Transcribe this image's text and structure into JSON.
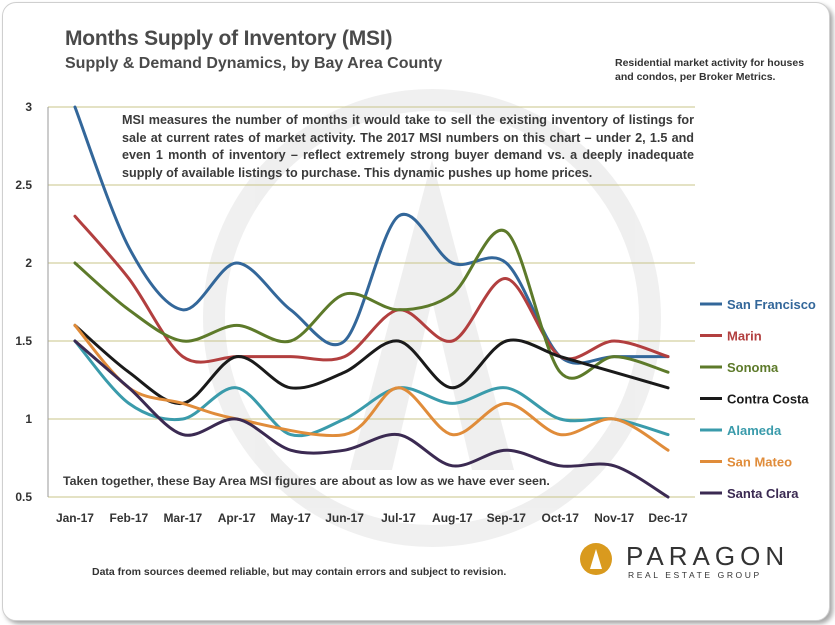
{
  "header": {
    "title": "Months Supply of Inventory (MSI)",
    "subtitle": "Supply & Demand Dynamics, by Bay Area County",
    "top_note": "Residential market activity for houses and condos, per Broker Metrics."
  },
  "annotations": {
    "description": "MSI measures the number of months it would take to sell the existing inventory of listings for sale at current rates of market activity. The 2017 MSI numbers on this chart – under 2, 1.5 and even 1 month of inventory – reflect extremely strong buyer demand vs. a deeply inadequate supply of available listings to purchase. This dynamic pushes up home prices.",
    "together": "Taken together, these Bay Area MSI figures are about as low as we have ever seen."
  },
  "footer": {
    "disclaimer": "Data from sources deemed reliable, but may contain errors and subject to revision."
  },
  "logo": {
    "name": "PARAGON",
    "sub": "REAL ESTATE GROUP",
    "accent_color": "#d99a1e"
  },
  "chart_data": {
    "type": "line",
    "title": "Months Supply of Inventory (MSI)",
    "xlabel": "",
    "ylabel": "",
    "ylim": [
      0.5,
      3
    ],
    "yticks": [
      "0.5",
      "1",
      "1.5",
      "2",
      "2.5",
      "3"
    ],
    "grid": true,
    "legend_position": "right",
    "categories": [
      "Jan-17",
      "Feb-17",
      "Mar-17",
      "Apr-17",
      "May-17",
      "Jun-17",
      "Jul-17",
      "Aug-17",
      "Sep-17",
      "Oct-17",
      "Nov-17",
      "Dec-17"
    ],
    "series": [
      {
        "name": "San Francisco",
        "color": "#33679a",
        "values": [
          3.0,
          2.1,
          1.7,
          2.0,
          1.7,
          1.5,
          2.3,
          2.0,
          2.0,
          1.4,
          1.4,
          1.4
        ]
      },
      {
        "name": "Marin",
        "color": "#b23f3f",
        "values": [
          2.3,
          1.9,
          1.4,
          1.4,
          1.4,
          1.4,
          1.7,
          1.5,
          1.9,
          1.4,
          1.5,
          1.4
        ]
      },
      {
        "name": "Sonoma",
        "color": "#5d7a2a",
        "values": [
          2.0,
          1.7,
          1.5,
          1.6,
          1.5,
          1.8,
          1.7,
          1.8,
          2.2,
          1.3,
          1.4,
          1.3
        ]
      },
      {
        "name": "Contra Costa",
        "color": "#1a1a1a",
        "values": [
          1.6,
          1.3,
          1.1,
          1.4,
          1.2,
          1.3,
          1.5,
          1.2,
          1.5,
          1.4,
          1.3,
          1.2
        ]
      },
      {
        "name": "Alameda",
        "color": "#3a9bab",
        "values": [
          1.5,
          1.1,
          1.0,
          1.2,
          0.9,
          1.0,
          1.2,
          1.1,
          1.2,
          1.0,
          1.0,
          0.9
        ]
      },
      {
        "name": "San Mateo",
        "color": "#e08c3a",
        "values": [
          1.6,
          1.2,
          1.1,
          1.0,
          null,
          0.9,
          1.2,
          0.9,
          1.1,
          0.9,
          1.0,
          0.8
        ]
      },
      {
        "name": "Santa Clara",
        "color": "#3b2a52",
        "values": [
          1.5,
          1.2,
          0.9,
          1.0,
          0.8,
          0.8,
          0.9,
          0.7,
          0.8,
          0.7,
          0.7,
          0.5
        ]
      }
    ]
  }
}
